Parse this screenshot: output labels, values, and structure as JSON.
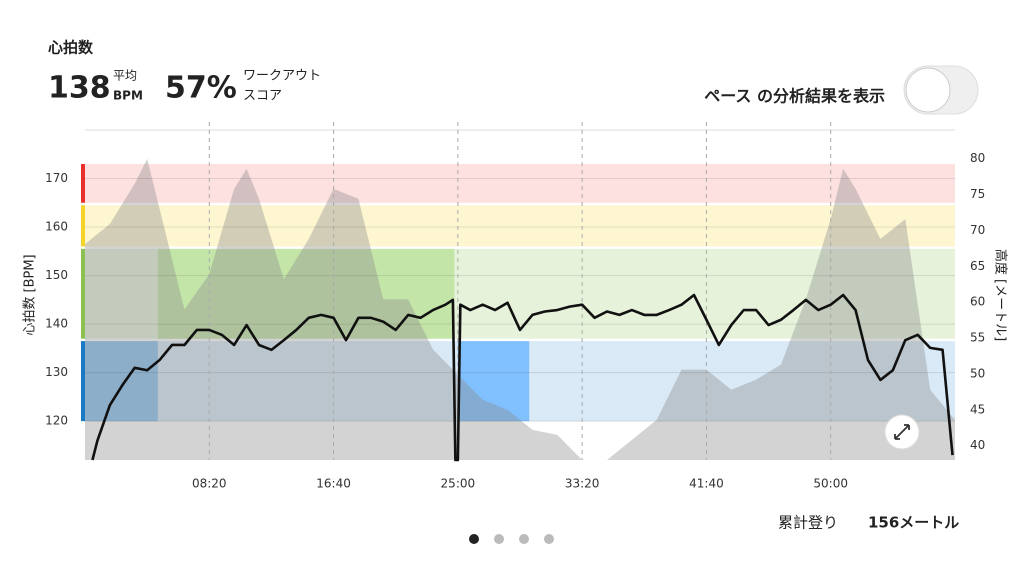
{
  "header": {
    "title": "心拍数",
    "avg_value": "138",
    "avg_label_1": "平均",
    "avg_label_2": "BPM",
    "score_value": "57%",
    "score_label_1": "ワークアウト",
    "score_label_2": "スコア"
  },
  "toggle": {
    "label": "ペース の分析結果を表示",
    "on": false
  },
  "footer": {
    "label": "累計登り",
    "value": "156メートル"
  },
  "chart_data": {
    "type": "line",
    "y_label": "心拍数 [BPM]",
    "y2_label": "高度 [メートル]",
    "xlim": [
      0,
      3500
    ],
    "xticks": [
      {
        "value": 500,
        "label": "08:20"
      },
      {
        "value": 1000,
        "label": "16:40"
      },
      {
        "value": 1500,
        "label": "25:00"
      },
      {
        "value": 2000,
        "label": "33:20"
      },
      {
        "value": 2500,
        "label": "41:40"
      },
      {
        "value": 3000,
        "label": "50:00"
      }
    ],
    "ylim": [
      112,
      180
    ],
    "yticks": [
      120,
      130,
      140,
      150,
      160,
      170
    ],
    "y2lim": [
      38,
      84
    ],
    "y2ticks": [
      40,
      45,
      50,
      55,
      60,
      65,
      70,
      75,
      80
    ],
    "grid": true,
    "zones": [
      {
        "low": 120,
        "high": 136.5,
        "color": "#1a7ac4",
        "fill": "#d9e9f5"
      },
      {
        "low": 137,
        "high": 155.5,
        "color": "#8cc152",
        "fill": "#e6f2da"
      },
      {
        "low": 156,
        "high": 164.5,
        "color": "#f5d327",
        "fill": "#fdf6d0"
      },
      {
        "low": 165,
        "high": 173,
        "color": "#e8312f",
        "fill": "#fde0e0"
      }
    ],
    "highlights": [
      {
        "x": [
          0,
          293
        ],
        "color": "#8dc3ef"
      },
      {
        "x": [
          293,
          1486
        ],
        "color": "#c3e6a8"
      },
      {
        "x": [
          1500,
          1787
        ],
        "color": "#80c0ff"
      }
    ],
    "series": [
      {
        "axis": "y2",
        "style": "area",
        "color": "rgba(140,140,140,0.38)",
        "x": [
          0,
          100,
          200,
          250,
          300,
          400,
          500,
          600,
          650,
          700,
          800,
          900,
          1000,
          1100,
          1200,
          1300,
          1400,
          1500,
          1600,
          1700,
          1800,
          1900,
          2000,
          2100,
          2200,
          2300,
          2400,
          2500,
          2600,
          2700,
          2800,
          2900,
          3000,
          3050,
          3100,
          3200,
          3300,
          3400,
          3500
        ],
        "values": [
          68.1,
          70.9,
          76.5,
          80,
          73,
          59,
          63.9,
          75.8,
          78.6,
          74.4,
          63.2,
          68.8,
          75.8,
          74.4,
          60.4,
          60.4,
          53.4,
          49.9,
          46.4,
          45,
          42.2,
          41.5,
          38,
          38,
          40.8,
          43.6,
          50.6,
          50.6,
          47.8,
          49.2,
          51.3,
          60.4,
          71.6,
          78.6,
          75.8,
          68.8,
          71.6,
          47.8,
          43.6
        ]
      },
      {
        "axis": "y",
        "style": "line",
        "color": "#111",
        "x": [
          30,
          50,
          100,
          150,
          200,
          250,
          300,
          350,
          400,
          450,
          500,
          550,
          600,
          650,
          700,
          750,
          800,
          850,
          900,
          950,
          1000,
          1050,
          1100,
          1150,
          1200,
          1250,
          1300,
          1350,
          1400,
          1450,
          1480,
          1490,
          1500,
          1510,
          1550,
          1600,
          1650,
          1700,
          1750,
          1800,
          1850,
          1900,
          1950,
          2000,
          2050,
          2100,
          2150,
          2200,
          2250,
          2300,
          2350,
          2400,
          2450,
          2500,
          2550,
          2600,
          2650,
          2700,
          2750,
          2800,
          2850,
          2900,
          2950,
          3000,
          3050,
          3100,
          3150,
          3200,
          3250,
          3300,
          3350,
          3400,
          3450,
          3490
        ],
        "values": [
          112,
          116,
          123.3,
          127.4,
          131,
          130.5,
          132.6,
          135.7,
          135.7,
          138.8,
          138.8,
          137.8,
          135.7,
          139.8,
          135.7,
          134.7,
          136.7,
          138.8,
          141.3,
          141.9,
          141.3,
          136.7,
          141.3,
          141.3,
          140.5,
          138.8,
          141.9,
          141.3,
          142.9,
          144,
          145,
          112,
          112,
          144,
          142.9,
          144,
          142.9,
          144.4,
          138.8,
          141.9,
          142.6,
          142.9,
          143.6,
          144,
          141.3,
          142.6,
          141.9,
          142.9,
          141.9,
          141.9,
          142.9,
          144,
          146,
          140.9,
          135.7,
          139.8,
          142.9,
          142.9,
          139.8,
          140.9,
          142.9,
          145,
          142.9,
          144,
          146,
          142.9,
          132.6,
          128.5,
          130.5,
          136.7,
          137.8,
          135.1,
          134.7,
          113
        ]
      }
    ]
  }
}
